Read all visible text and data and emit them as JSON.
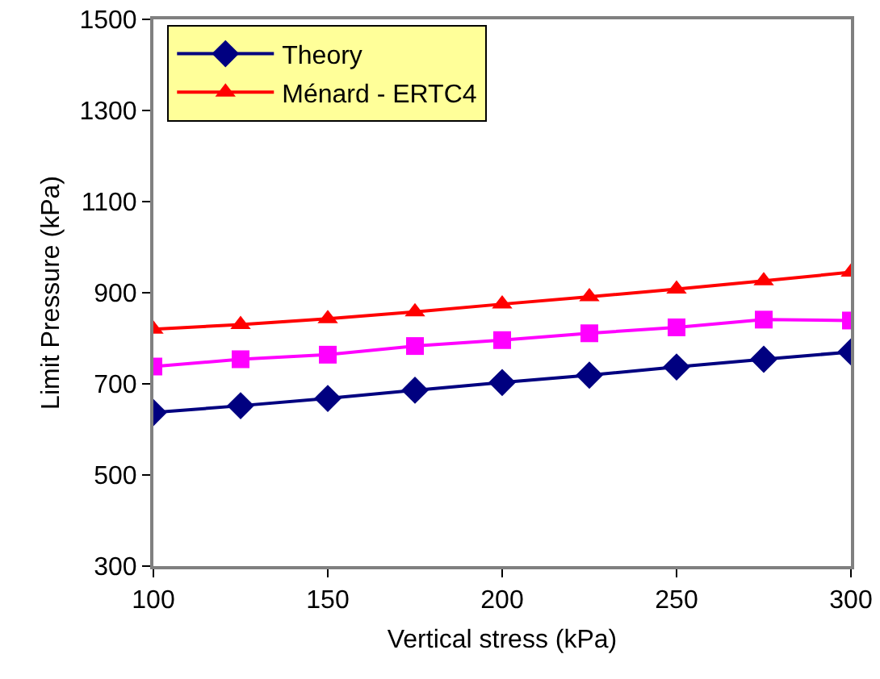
{
  "chart_data": {
    "type": "line",
    "xlabel": "Vertical stress (kPa)",
    "ylabel": "Limit Pressure (kPa)",
    "x": [
      100,
      125,
      150,
      175,
      200,
      225,
      250,
      275,
      300
    ],
    "series": [
      {
        "name": "Theory",
        "color": "#000080",
        "marker": "diamond",
        "values": [
          637,
          652,
          668,
          686,
          703,
          719,
          737,
          754,
          770
        ]
      },
      {
        "color": "#ff00ff",
        "marker": "square",
        "values": [
          738,
          754,
          764,
          783,
          796,
          811,
          824,
          841,
          839
        ]
      },
      {
        "name": "Ménard - ERTC4",
        "color": "#ff0000",
        "marker": "triangle",
        "values": [
          820,
          830,
          843,
          858,
          875,
          891,
          908,
          926,
          945
        ]
      }
    ],
    "xlim": [
      100,
      300
    ],
    "xticks": [
      100,
      150,
      200,
      250,
      300
    ],
    "ylim": [
      300,
      1500
    ],
    "yticks": [
      300,
      500,
      700,
      900,
      1100,
      1300,
      1500
    ],
    "grid": false,
    "legend": "top left",
    "line_style": "solid"
  }
}
